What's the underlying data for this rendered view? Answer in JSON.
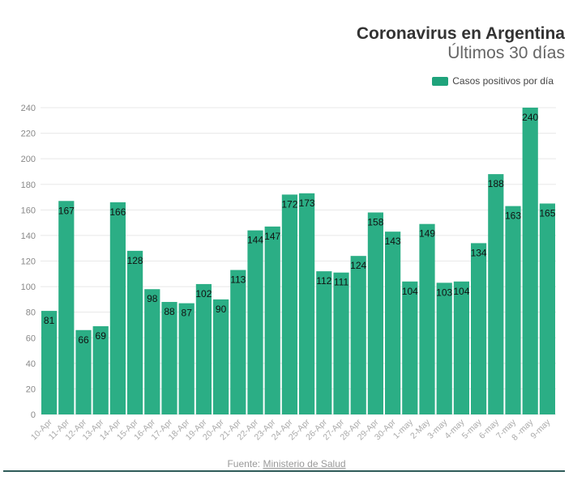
{
  "header": {
    "title": "Coronavirus en Argentina",
    "subtitle": "Últimos 30 días"
  },
  "source": {
    "label": "Fuente:",
    "link": "Ministerio de Salud"
  },
  "colors": {
    "bar": "#2bae85",
    "legend": "#1fa37b",
    "rule": "#2f5b59"
  },
  "chart_data": {
    "type": "bar",
    "title": "Coronavirus en Argentina",
    "subtitle": "Últimos 30 días",
    "legend": [
      {
        "label": "Casos positivos por día",
        "position": "top-right"
      }
    ],
    "categories": [
      "10-Apr",
      "11-Apr",
      "12-Apr",
      "13-Apr",
      "14-Apr",
      "15-Apr",
      "16-Apr",
      "17-Apr",
      "18-Apr",
      "19-Apr",
      "20-Apr",
      "21-Apr",
      "22-Apr",
      "23-Apr",
      "24-Apr",
      "25-Apr",
      "26-Apr",
      "27-Apr",
      "28-Apr",
      "29-Apr",
      "30-Apr",
      "1-may",
      "2-May",
      "3-may",
      "4-may",
      "5-may",
      "6-may",
      "7-may",
      "8 -may",
      "9-may"
    ],
    "values": [
      81,
      167,
      66,
      69,
      166,
      128,
      98,
      88,
      87,
      102,
      90,
      113,
      144,
      147,
      172,
      173,
      112,
      111,
      124,
      158,
      143,
      104,
      149,
      103,
      104,
      134,
      188,
      163,
      240,
      165
    ],
    "ylim": [
      0,
      240
    ],
    "yticks": [
      0,
      20,
      40,
      60,
      80,
      100,
      120,
      140,
      160,
      180,
      200,
      220,
      240
    ],
    "grid": true
  }
}
